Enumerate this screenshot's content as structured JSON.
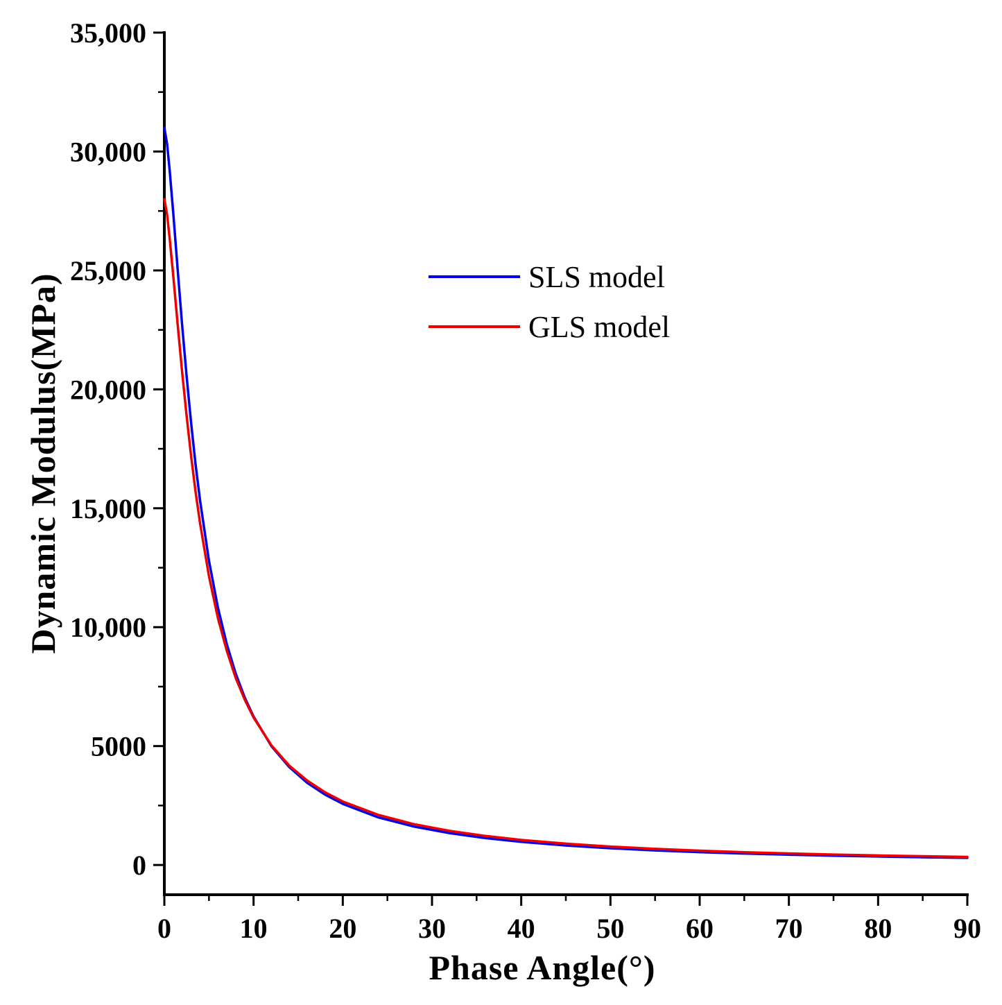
{
  "chart_data": {
    "type": "line",
    "title": "",
    "xlabel": "Phase Angle(°)",
    "ylabel": "Dynamic Modulus(MPa)",
    "xlim": [
      0,
      90
    ],
    "ylim": [
      -1250,
      35000
    ],
    "grid": false,
    "legend_position": "upper-center",
    "x_ticks": [
      {
        "v": 0,
        "label": "0"
      },
      {
        "v": 10,
        "label": "10"
      },
      {
        "v": 20,
        "label": "20"
      },
      {
        "v": 30,
        "label": "30"
      },
      {
        "v": 40,
        "label": "40"
      },
      {
        "v": 50,
        "label": "50"
      },
      {
        "v": 60,
        "label": "60"
      },
      {
        "v": 70,
        "label": "70"
      },
      {
        "v": 80,
        "label": "80"
      },
      {
        "v": 90,
        "label": "90"
      }
    ],
    "x_minor_ticks": [
      5,
      15,
      25,
      35,
      45,
      55,
      65,
      75,
      85
    ],
    "y_ticks": [
      {
        "v": 0,
        "label": "0"
      },
      {
        "v": 5000,
        "label": "5000"
      },
      {
        "v": 10000,
        "label": "10,000"
      },
      {
        "v": 15000,
        "label": "15,000"
      },
      {
        "v": 20000,
        "label": "20,000"
      },
      {
        "v": 25000,
        "label": "25,000"
      },
      {
        "v": 30000,
        "label": "30,000"
      },
      {
        "v": 35000,
        "label": "35,000"
      }
    ],
    "y_minor_ticks": [
      2500,
      7500,
      12500,
      17500,
      22500,
      27500,
      32500
    ],
    "x": [
      0,
      0.3,
      0.6,
      1,
      1.5,
      2,
      2.5,
      3,
      3.5,
      4,
      5,
      6,
      7,
      8,
      9,
      10,
      12,
      14,
      16,
      18,
      20,
      24,
      28,
      32,
      36,
      40,
      45,
      50,
      55,
      60,
      65,
      70,
      75,
      80,
      85,
      90
    ],
    "series": [
      {
        "name": "SLS model",
        "color": "#0000ee",
        "values": [
          31000,
          30330,
          29200,
          27400,
          25010,
          22680,
          20530,
          18590,
          16850,
          15330,
          12800,
          10830,
          9280,
          8050,
          7050,
          6240,
          5000,
          4120,
          3460,
          2960,
          2570,
          2000,
          1613,
          1336,
          1131,
          972,
          821,
          705,
          614,
          541,
          482,
          432,
          391,
          356,
          326,
          300
        ]
      },
      {
        "name": "GLS model",
        "color": "#ee0000",
        "values": [
          28000,
          27360,
          26340,
          24760,
          22700,
          20710,
          18860,
          17190,
          15700,
          14370,
          12150,
          10390,
          9000,
          7870,
          6960,
          6200,
          5030,
          4180,
          3550,
          3060,
          2670,
          2105,
          1714,
          1432,
          1219,
          1055,
          897,
          775,
          678,
          601,
          537,
          484,
          439,
          401,
          368,
          339
        ]
      }
    ],
    "axis_color": "#000000",
    "tick_label_fontsize": 40
  }
}
